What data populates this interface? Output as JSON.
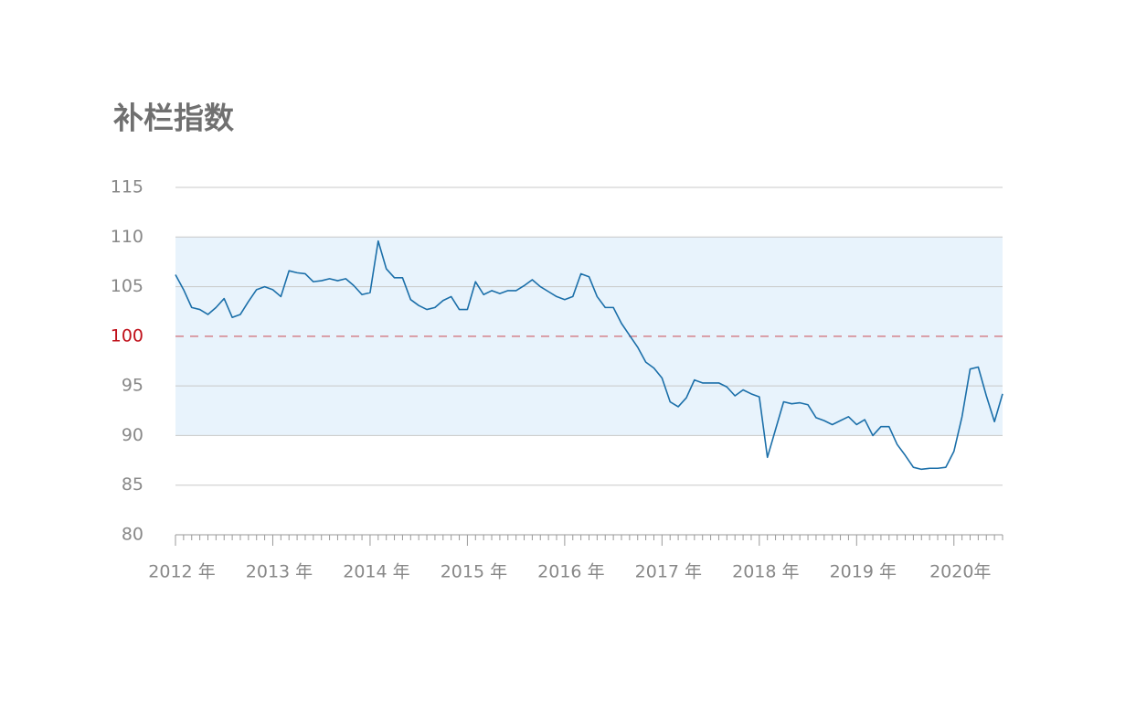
{
  "chart_data": {
    "type": "line",
    "title": "补栏指数",
    "categories": [
      "2012 年",
      null,
      null,
      null,
      null,
      null,
      null,
      null,
      null,
      null,
      null,
      null,
      "2013 年",
      null,
      null,
      null,
      null,
      null,
      null,
      null,
      null,
      null,
      null,
      null,
      "2014 年",
      null,
      null,
      null,
      null,
      null,
      null,
      null,
      null,
      null,
      null,
      null,
      "2015 年",
      null,
      null,
      null,
      null,
      null,
      null,
      null,
      null,
      null,
      null,
      null,
      "2016 年",
      null,
      null,
      null,
      null,
      null,
      null,
      null,
      null,
      null,
      null,
      null,
      "2017 年",
      null,
      null,
      null,
      null,
      null,
      null,
      null,
      null,
      null,
      null,
      null,
      "2018 年",
      null,
      null,
      null,
      null,
      null,
      null,
      null,
      null,
      null,
      null,
      null,
      "2019 年",
      null,
      null,
      null,
      null,
      null,
      null,
      null,
      null,
      null,
      null,
      null,
      "2020年",
      null,
      null,
      null,
      null,
      null,
      null
    ],
    "series": [
      {
        "color": "#1b6fa9",
        "values": [
          106.2,
          104.7,
          102.9,
          102.7,
          102.2,
          102.9,
          103.8,
          101.9,
          102.2,
          103.5,
          104.7,
          105.0,
          104.7,
          104.0,
          106.6,
          106.4,
          106.3,
          105.5,
          105.6,
          105.8,
          105.6,
          105.8,
          105.1,
          104.2,
          104.4,
          109.6,
          106.8,
          105.9,
          105.9,
          103.7,
          103.1,
          102.7,
          102.9,
          103.6,
          104.0,
          102.7,
          102.7,
          105.5,
          104.2,
          104.6,
          104.3,
          104.6,
          104.6,
          105.1,
          105.7,
          105.0,
          104.5,
          104.0,
          103.7,
          104.0,
          106.3,
          106.0,
          104.0,
          102.9,
          102.9,
          101.3,
          100.1,
          98.9,
          97.4,
          96.8,
          95.8,
          93.4,
          92.9,
          93.8,
          95.6,
          95.3,
          95.3,
          95.3,
          94.9,
          94.0,
          94.6,
          94.2,
          93.9,
          87.8,
          90.6,
          93.4,
          93.2,
          93.3,
          93.1,
          91.8,
          91.5,
          91.1,
          91.5,
          91.9,
          91.1,
          91.6,
          90.0,
          90.9,
          90.9,
          89.1,
          88.0,
          86.8,
          86.6,
          86.7,
          86.7,
          86.8,
          88.4,
          91.9,
          96.7,
          96.9,
          94.0,
          91.4,
          94.2
        ]
      }
    ],
    "ylim": [
      80,
      115
    ],
    "yticks": [
      80,
      85,
      90,
      95,
      100,
      105,
      110,
      115
    ],
    "grid": true,
    "band": {
      "range": [
        90,
        110
      ],
      "color": "#e8f3fc"
    },
    "reference_line": {
      "value": 100,
      "color": "#c0101a"
    }
  }
}
